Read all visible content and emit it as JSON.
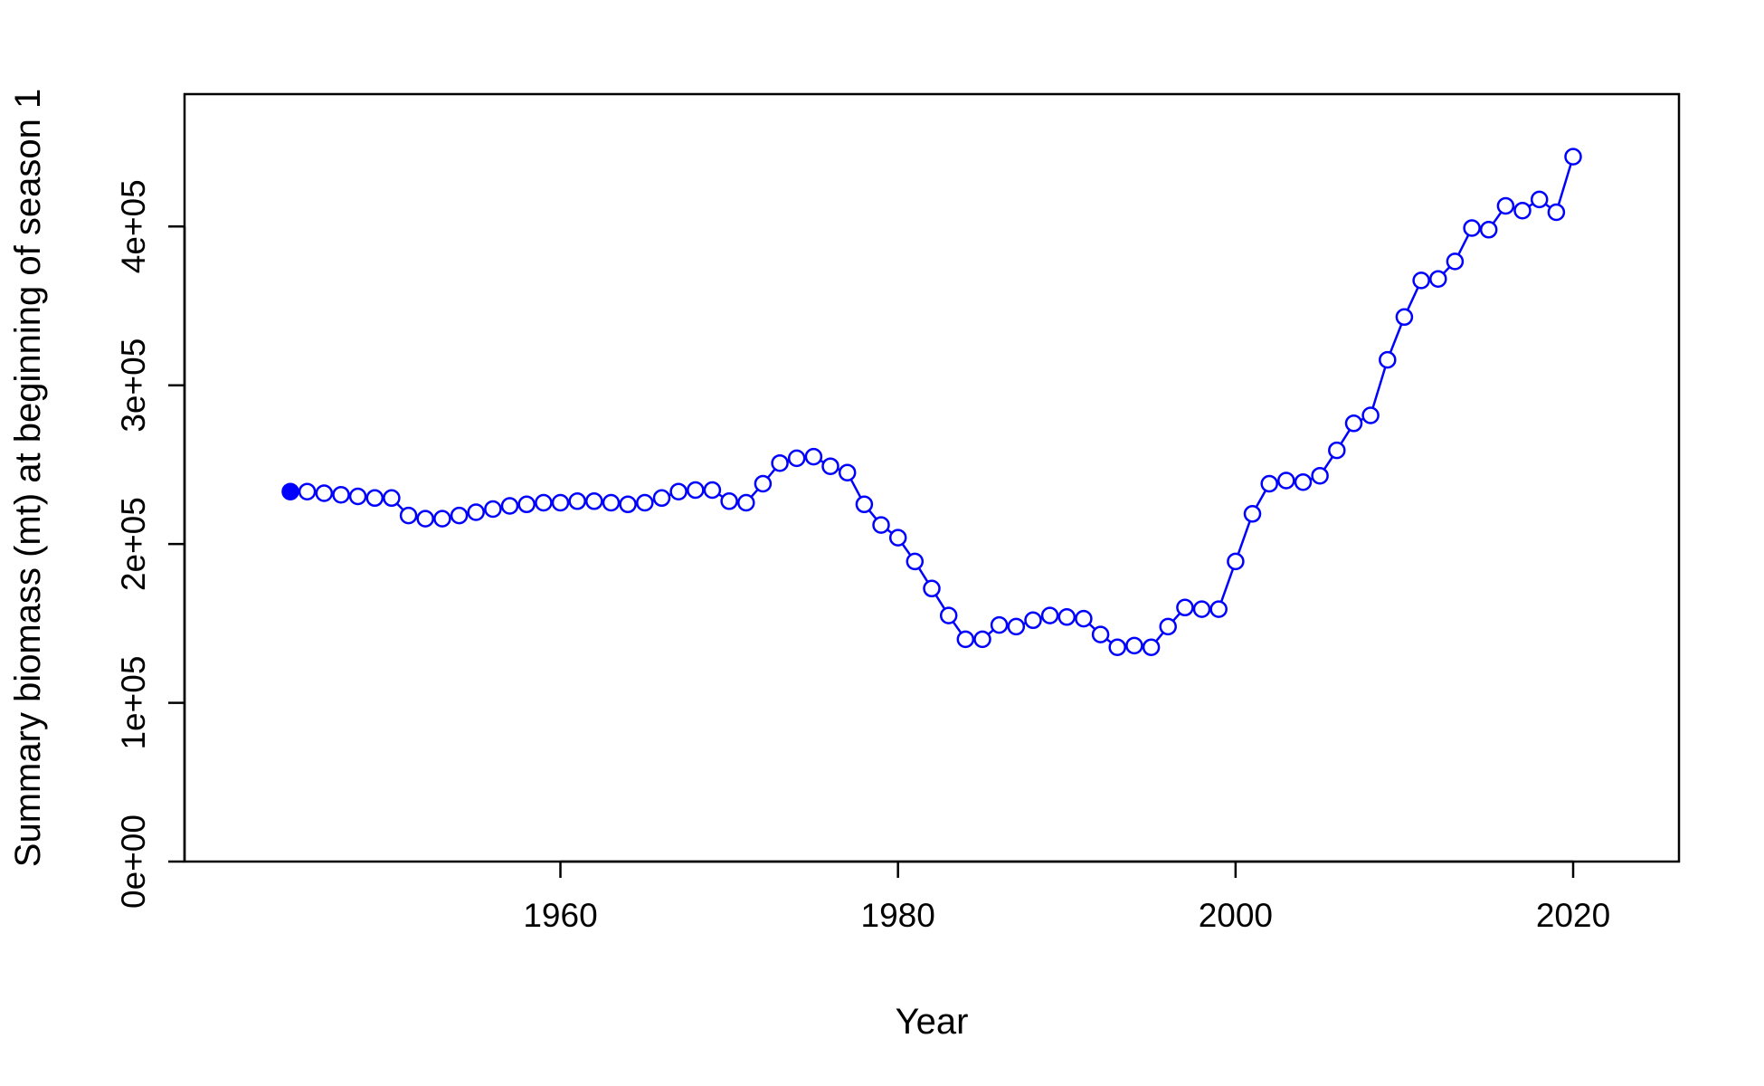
{
  "chart_data": {
    "type": "line",
    "title": "",
    "xlabel": "Year",
    "ylabel": "Summary biomass (mt) at beginning of season 1",
    "xlim": [
      1941,
      2023
    ],
    "ylim": [
      0,
      460000
    ],
    "x_ticks": [
      {
        "value": 1960,
        "label": "1960"
      },
      {
        "value": 1980,
        "label": "1980"
      },
      {
        "value": 2000,
        "label": "2000"
      },
      {
        "value": 2020,
        "label": "2020"
      }
    ],
    "y_ticks": [
      {
        "value": 0,
        "label": "0e+00"
      },
      {
        "value": 100000,
        "label": "1e+05"
      },
      {
        "value": 200000,
        "label": "2e+05"
      },
      {
        "value": 300000,
        "label": "3e+05"
      },
      {
        "value": 400000,
        "label": "4e+05"
      }
    ],
    "grid": false,
    "legend": "none",
    "series": [
      {
        "color": "#0000ff",
        "marker": "open-circle",
        "first_point_filled": true,
        "x": [
          1944,
          1945,
          1946,
          1947,
          1948,
          1949,
          1950,
          1951,
          1952,
          1953,
          1954,
          1955,
          1956,
          1957,
          1958,
          1959,
          1960,
          1961,
          1962,
          1963,
          1964,
          1965,
          1966,
          1967,
          1968,
          1969,
          1970,
          1971,
          1972,
          1973,
          1974,
          1975,
          1976,
          1977,
          1978,
          1979,
          1980,
          1981,
          1982,
          1983,
          1984,
          1985,
          1986,
          1987,
          1988,
          1989,
          1990,
          1991,
          1992,
          1993,
          1994,
          1995,
          1996,
          1997,
          1998,
          1999,
          2000,
          2001,
          2002,
          2003,
          2004,
          2005,
          2006,
          2007,
          2008,
          2009,
          2010,
          2011,
          2012,
          2013,
          2014,
          2015,
          2016,
          2017,
          2018,
          2019,
          2020
        ],
        "values": [
          233000,
          233000,
          232000,
          231000,
          230000,
          229000,
          229000,
          218000,
          216000,
          216000,
          218000,
          220000,
          222000,
          224000,
          225000,
          226000,
          226000,
          227000,
          227000,
          226000,
          225000,
          226000,
          229000,
          233000,
          234000,
          234000,
          227000,
          226000,
          238000,
          251000,
          254000,
          255000,
          249000,
          245000,
          225000,
          212000,
          204000,
          189000,
          172000,
          155000,
          140000,
          140000,
          149000,
          148000,
          152000,
          155000,
          154000,
          153000,
          143000,
          135000,
          136000,
          135000,
          148000,
          160000,
          159000,
          159000,
          189000,
          219000,
          238000,
          240000,
          239000,
          243000,
          259000,
          276000,
          281000,
          316000,
          343000,
          366000,
          367000,
          378000,
          399000,
          398000,
          413000,
          410000,
          417000,
          409000,
          444000
        ]
      }
    ]
  }
}
